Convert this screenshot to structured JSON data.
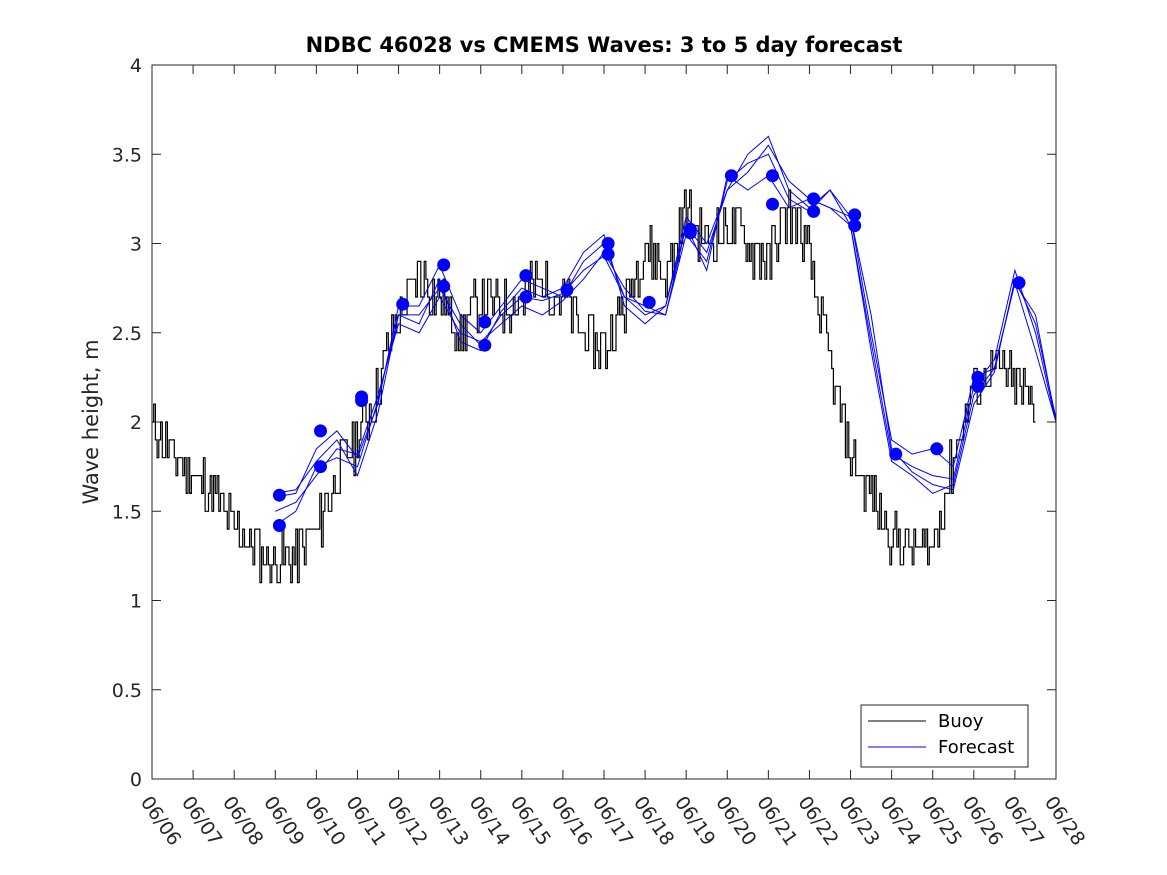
{
  "chart_data": {
    "type": "line",
    "title": "NDBC 46028 vs CMEMS Waves: 3 to 5 day forecast",
    "ylabel": "Wave height, m",
    "xlabel": "",
    "x_ticks": [
      "06/06",
      "06/07",
      "06/08",
      "06/09",
      "06/10",
      "06/11",
      "06/12",
      "06/13",
      "06/14",
      "06/15",
      "06/16",
      "06/17",
      "06/18",
      "06/19",
      "06/20",
      "06/21",
      "06/22",
      "06/23",
      "06/24",
      "06/25",
      "06/26",
      "06/27",
      "06/28"
    ],
    "xlim": [
      0,
      22
    ],
    "ylim": [
      0,
      4
    ],
    "y_ticks": [
      "0",
      "0.5",
      "1",
      "1.5",
      "2",
      "2.5",
      "3",
      "3.5",
      "4"
    ],
    "legend": {
      "placement": "bottom-right",
      "entries": [
        {
          "name": "Buoy",
          "color": "#000000"
        },
        {
          "name": "Forecast",
          "color": "#0000ff"
        }
      ]
    },
    "colors": {
      "buoy": "#000000",
      "forecast": "#0000ff"
    },
    "buoy": {
      "x": [
        0,
        0.5,
        1,
        1.5,
        2,
        2.5,
        3,
        3.5,
        4,
        4.5,
        5,
        5.5,
        6,
        6.5,
        7,
        7.5,
        8,
        8.5,
        9,
        9.5,
        10,
        10.5,
        11,
        11.5,
        12,
        12.5,
        13,
        13.5,
        14,
        14.5,
        15,
        15.5,
        16,
        16.5,
        17,
        17.5,
        18,
        18.5,
        19,
        19.5,
        20,
        20.5,
        21,
        21.5
      ],
      "y": [
        2.0,
        1.8,
        1.7,
        1.6,
        1.4,
        1.3,
        1.2,
        1.25,
        1.4,
        1.7,
        1.9,
        2.2,
        2.6,
        2.8,
        2.7,
        2.5,
        2.7,
        2.65,
        2.7,
        2.8,
        2.7,
        2.5,
        2.4,
        2.65,
        3.0,
        2.8,
        3.2,
        3.0,
        3.1,
        3.0,
        2.9,
        3.2,
        2.9,
        2.3,
        1.8,
        1.6,
        1.35,
        1.3,
        1.3,
        1.8,
        2.2,
        2.3,
        2.2,
        2.1
      ],
      "noise_amplitude": 0.15
    },
    "forecast_series": [
      {
        "x": [
          3,
          3.5,
          4,
          4.5,
          5,
          5.5,
          6,
          6.5,
          7,
          7.5,
          8,
          8.5,
          9,
          9.5,
          10,
          10.5,
          11,
          11.5,
          12,
          12.5,
          13,
          13.5,
          14,
          14.5,
          15,
          15.5,
          16,
          16.5,
          17,
          17.5,
          18,
          18.5,
          19,
          19.5,
          20,
          20.5,
          21,
          21.5,
          22
        ],
        "y": [
          1.58,
          1.6,
          1.85,
          1.95,
          1.8,
          2.1,
          2.65,
          2.65,
          2.88,
          2.6,
          2.5,
          2.65,
          2.8,
          2.75,
          2.7,
          2.9,
          3.0,
          2.7,
          2.6,
          2.65,
          3.1,
          2.85,
          3.38,
          3.3,
          3.38,
          3.2,
          3.25,
          3.2,
          3.15,
          2.5,
          1.9,
          1.82,
          1.85,
          1.75,
          2.25,
          2.3,
          2.78,
          2.4,
          2.0
        ]
      },
      {
        "x": [
          3,
          3.5,
          4,
          4.5,
          5,
          5.5,
          6,
          6.5,
          7,
          7.5,
          8,
          8.5,
          9,
          9.5,
          10,
          10.5,
          11,
          11.5,
          12,
          12.5,
          13,
          13.5,
          14,
          14.5,
          15,
          15.5,
          16,
          16.5,
          17,
          17.5,
          18,
          18.5,
          19,
          19.5,
          20,
          20.5,
          21,
          21.5,
          22
        ],
        "y": [
          1.42,
          1.5,
          1.75,
          1.8,
          1.75,
          2.12,
          2.6,
          2.6,
          2.75,
          2.55,
          2.43,
          2.6,
          2.7,
          2.68,
          2.72,
          2.85,
          2.93,
          2.7,
          2.65,
          2.6,
          3.05,
          2.9,
          3.35,
          3.45,
          3.5,
          3.25,
          3.18,
          3.3,
          3.1,
          2.45,
          1.82,
          1.75,
          1.7,
          1.68,
          2.2,
          2.35,
          2.85,
          2.5,
          2.0
        ]
      },
      {
        "x": [
          3,
          3.5,
          4,
          4.5,
          5,
          5.5,
          6,
          6.5,
          7,
          7.5,
          8,
          8.5,
          9,
          9.5,
          10,
          10.5,
          11,
          11.5,
          12,
          12.5,
          13,
          13.5,
          14,
          14.5,
          15,
          15.5,
          16,
          16.5,
          17,
          17.5,
          18,
          18.5,
          19,
          19.5,
          20,
          20.5,
          21,
          21.5,
          22
        ],
        "y": [
          1.5,
          1.55,
          1.7,
          1.85,
          1.82,
          2.15,
          2.55,
          2.5,
          2.7,
          2.5,
          2.45,
          2.55,
          2.65,
          2.6,
          2.68,
          2.8,
          2.95,
          2.75,
          2.62,
          2.6,
          3.1,
          2.95,
          3.3,
          3.5,
          3.6,
          3.3,
          3.2,
          3.3,
          3.15,
          2.6,
          1.85,
          1.72,
          1.65,
          1.62,
          2.1,
          2.28,
          2.8,
          2.55,
          2.02
        ]
      },
      {
        "x": [
          3,
          3.5,
          4,
          4.5,
          5,
          5.5,
          6,
          6.5,
          7,
          7.5,
          8,
          8.5,
          9,
          9.5,
          10,
          10.5,
          11,
          11.5,
          12,
          12.5,
          13,
          13.5,
          14,
          14.5,
          15,
          15.5,
          16,
          16.5,
          17,
          17.5,
          18,
          18.5,
          19,
          19.5,
          20,
          20.5,
          21,
          21.5,
          22
        ],
        "y": [
          1.6,
          1.62,
          1.78,
          1.9,
          1.7,
          2.05,
          2.6,
          2.55,
          2.8,
          2.45,
          2.4,
          2.62,
          2.75,
          2.7,
          2.75,
          2.95,
          3.05,
          2.65,
          2.55,
          2.65,
          3.15,
          3.0,
          3.3,
          3.4,
          3.55,
          3.35,
          3.25,
          3.2,
          3.1,
          2.4,
          1.78,
          1.7,
          1.6,
          1.65,
          2.15,
          2.3,
          2.78,
          2.6,
          2.0
        ]
      }
    ],
    "forecast_markers": {
      "x": [
        3.1,
        3.1,
        4.1,
        4.1,
        5.1,
        5.1,
        6.1,
        7.1,
        7.1,
        8.1,
        8.1,
        9.1,
        9.1,
        10.1,
        11.1,
        11.1,
        12.1,
        13.1,
        13.1,
        14.1,
        15.1,
        15.1,
        16.1,
        16.1,
        17.1,
        17.1,
        18.1,
        19.1,
        20.1,
        20.1,
        21.1
      ],
      "y": [
        1.59,
        1.42,
        1.95,
        1.75,
        2.14,
        2.12,
        2.66,
        2.88,
        2.76,
        2.56,
        2.43,
        2.82,
        2.7,
        2.74,
        3.0,
        2.94,
        2.67,
        3.08,
        3.06,
        3.38,
        3.38,
        3.22,
        3.25,
        3.18,
        3.16,
        3.1,
        1.82,
        1.85,
        2.25,
        2.2,
        2.78
      ]
    }
  }
}
